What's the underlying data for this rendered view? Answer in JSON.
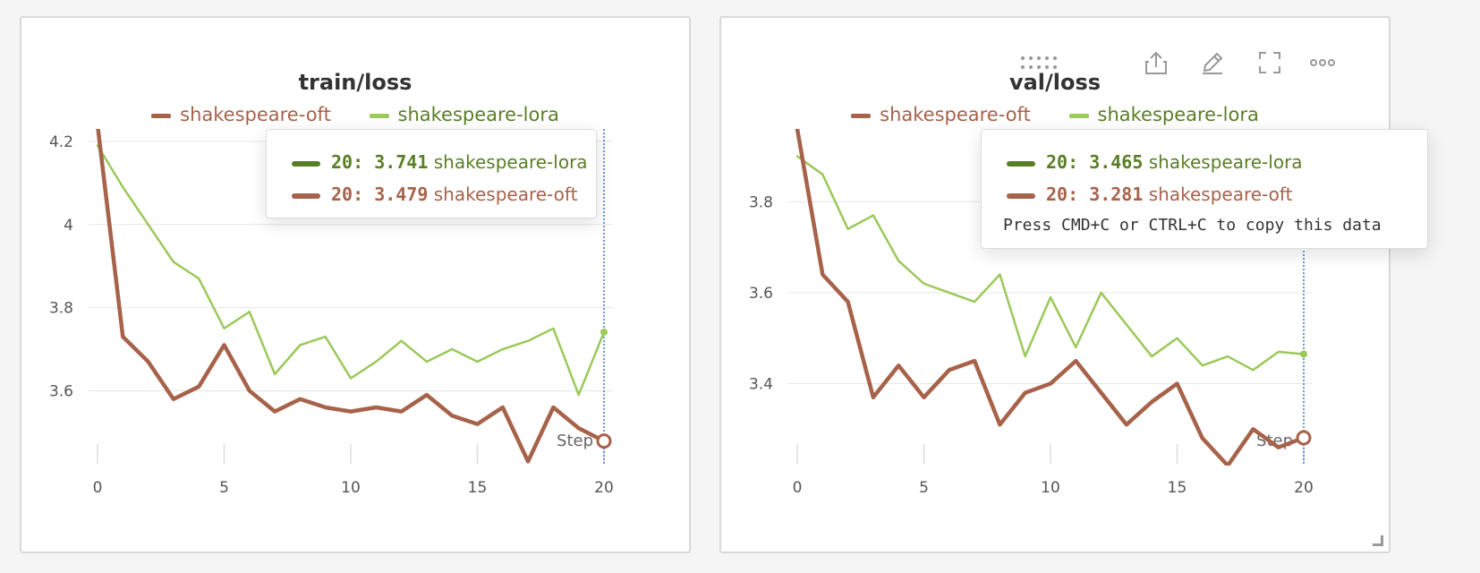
{
  "colors": {
    "lora": "#9bc95a",
    "oft": "#a7624a",
    "lora_text": "#5a7e26",
    "oft_text": "#a7624a",
    "cursor": "#3b74c6"
  },
  "chart_data": [
    {
      "type": "line",
      "title": "train/loss",
      "xlabel": "Step",
      "xlim": [
        0,
        20
      ],
      "ylim": [
        3.42,
        4.23
      ],
      "xticks": [
        0,
        5,
        10,
        15,
        20
      ],
      "yticks": [
        3.6,
        3.8,
        4,
        4.2
      ],
      "ytick_labels": [
        "3.6",
        "3.8",
        "4",
        "4.2"
      ],
      "grid": true,
      "legend": "top",
      "series": [
        {
          "name": "shakespeare-oft",
          "x": [
            0,
            1,
            2,
            3,
            4,
            5,
            6,
            7,
            8,
            9,
            10,
            11,
            12,
            13,
            14,
            15,
            16,
            17,
            18,
            19,
            20
          ],
          "values": [
            4.24,
            3.73,
            3.67,
            3.58,
            3.61,
            3.71,
            3.6,
            3.55,
            3.58,
            3.56,
            3.55,
            3.56,
            3.55,
            3.59,
            3.54,
            3.52,
            3.56,
            3.43,
            3.56,
            3.51,
            3.479
          ]
        },
        {
          "name": "shakespeare-lora",
          "x": [
            0,
            1,
            2,
            3,
            4,
            5,
            6,
            7,
            8,
            9,
            10,
            11,
            12,
            13,
            14,
            15,
            16,
            17,
            18,
            19,
            20
          ],
          "values": [
            4.19,
            4.09,
            4.0,
            3.91,
            3.87,
            3.75,
            3.79,
            3.64,
            3.71,
            3.73,
            3.63,
            3.67,
            3.72,
            3.67,
            3.7,
            3.67,
            3.7,
            3.72,
            3.75,
            3.59,
            3.741
          ]
        }
      ],
      "tooltip": {
        "rows": [
          {
            "series": "shakespeare-lora",
            "step": "20",
            "value": "3.741"
          },
          {
            "series": "shakespeare-oft",
            "step": "20",
            "value": "3.479"
          }
        ],
        "copy_hint": ""
      },
      "hover_step": 20
    },
    {
      "type": "line",
      "title": "val/loss",
      "xlabel": "Step",
      "xlim": [
        0,
        20
      ],
      "ylim": [
        3.22,
        3.96
      ],
      "xticks": [
        0,
        5,
        10,
        15,
        20
      ],
      "yticks": [
        3.4,
        3.6,
        3.8
      ],
      "ytick_labels": [
        "3.4",
        "3.6",
        "3.8"
      ],
      "grid": true,
      "legend": "top",
      "series": [
        {
          "name": "shakespeare-oft",
          "x": [
            0,
            1,
            2,
            3,
            4,
            5,
            6,
            7,
            8,
            9,
            10,
            11,
            12,
            13,
            14,
            15,
            16,
            17,
            18,
            19,
            20
          ],
          "values": [
            3.96,
            3.64,
            3.58,
            3.37,
            3.44,
            3.37,
            3.43,
            3.45,
            3.31,
            3.38,
            3.4,
            3.45,
            3.38,
            3.31,
            3.36,
            3.4,
            3.28,
            3.22,
            3.3,
            3.26,
            3.281
          ]
        },
        {
          "name": "shakespeare-lora",
          "x": [
            0,
            1,
            2,
            3,
            4,
            5,
            6,
            7,
            8,
            9,
            10,
            11,
            12,
            13,
            14,
            15,
            16,
            17,
            18,
            19,
            20
          ],
          "values": [
            3.9,
            3.86,
            3.74,
            3.77,
            3.67,
            3.62,
            3.6,
            3.58,
            3.64,
            3.46,
            3.59,
            3.48,
            3.6,
            3.53,
            3.46,
            3.5,
            3.44,
            3.46,
            3.43,
            3.47,
            3.465
          ]
        }
      ],
      "tooltip": {
        "rows": [
          {
            "series": "shakespeare-lora",
            "step": "20",
            "value": "3.465"
          },
          {
            "series": "shakespeare-oft",
            "step": "20",
            "value": "3.281"
          }
        ],
        "copy_hint": "Press CMD+C or CTRL+C to copy this data"
      },
      "hover_step": 20
    }
  ],
  "toolbar": {
    "icons": [
      "drag-handle-icon",
      "share-icon",
      "edit-icon",
      "fullscreen-icon",
      "more-icon"
    ]
  }
}
